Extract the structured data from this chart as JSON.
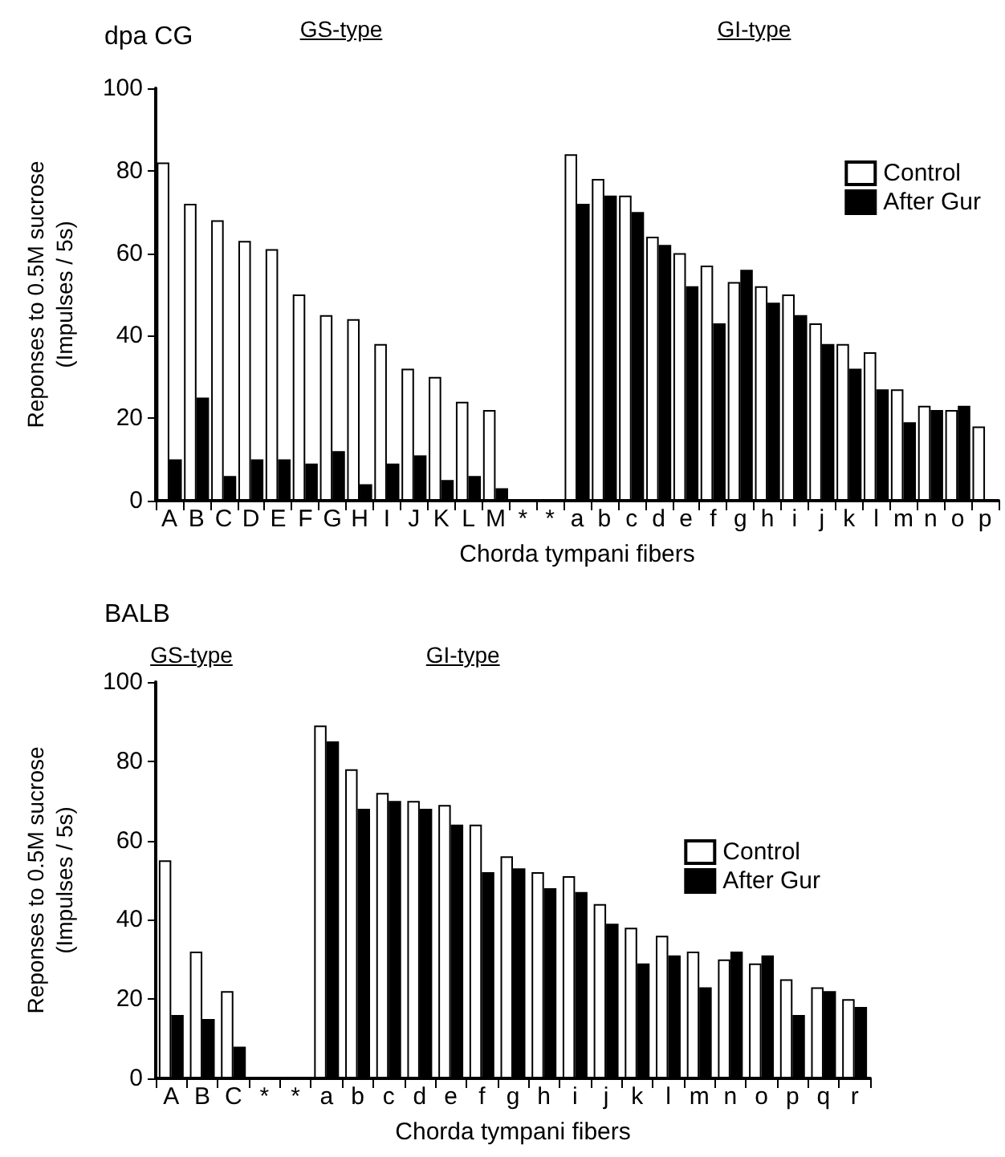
{
  "chart_data": [
    {
      "type": "bar",
      "title": "dpa CG",
      "xlabel": "Chorda tympani fibers",
      "ylabel": "Reponses to 0.5M sucrose\n(Impulses / 5s)",
      "annotations": [
        "GS-type",
        "GI-type"
      ],
      "categories": [
        "A",
        "B",
        "C",
        "D",
        "E",
        "F",
        "G",
        "H",
        "I",
        "J",
        "K",
        "L",
        "M",
        "*",
        "*",
        "a",
        "b",
        "c",
        "d",
        "e",
        "f",
        "g",
        "h",
        "i",
        "j",
        "k",
        "l",
        "m",
        "n",
        "o",
        "p"
      ],
      "series": [
        {
          "name": "Control",
          "color": "#ffffff",
          "values": [
            82,
            72,
            68,
            63,
            61,
            50,
            45,
            44,
            38,
            32,
            30,
            24,
            22,
            null,
            null,
            84,
            78,
            74,
            64,
            60,
            57,
            53,
            52,
            50,
            43,
            38,
            36,
            27,
            23,
            22,
            18
          ]
        },
        {
          "name": "After Gur",
          "color": "#000000",
          "values": [
            10,
            25,
            6,
            10,
            10,
            9,
            12,
            4,
            9,
            11,
            5,
            6,
            3,
            null,
            null,
            72,
            74,
            70,
            62,
            52,
            43,
            56,
            48,
            45,
            38,
            32,
            27,
            19,
            22,
            23,
            null
          ]
        }
      ],
      "ylim": [
        0,
        100
      ],
      "yticks": [
        0,
        20,
        40,
        60,
        80,
        100
      ],
      "grid": false,
      "legend": "top right"
    },
    {
      "type": "bar",
      "title": "BALB",
      "xlabel": "Chorda tympani fibers",
      "ylabel": "Reponses to 0.5M sucrose\n(Impulses / 5s)",
      "annotations": [
        "GS-type",
        "GI-type"
      ],
      "categories": [
        "A",
        "B",
        "C",
        "*",
        "*",
        "a",
        "b",
        "c",
        "d",
        "e",
        "f",
        "g",
        "h",
        "i",
        "j",
        "k",
        "l",
        "m",
        "n",
        "o",
        "p",
        "q",
        "r"
      ],
      "series": [
        {
          "name": "Control",
          "color": "#ffffff",
          "values": [
            55,
            32,
            22,
            null,
            null,
            89,
            78,
            72,
            70,
            69,
            64,
            56,
            52,
            51,
            44,
            38,
            36,
            32,
            30,
            29,
            25,
            23,
            20
          ]
        },
        {
          "name": "After Gur",
          "color": "#000000",
          "values": [
            16,
            15,
            8,
            null,
            null,
            85,
            68,
            70,
            68,
            64,
            52,
            53,
            48,
            47,
            39,
            29,
            31,
            23,
            32,
            31,
            16,
            22,
            18
          ]
        }
      ],
      "ylim": [
        0,
        100
      ],
      "yticks": [
        0,
        20,
        40,
        60,
        80,
        100
      ],
      "grid": false,
      "legend": "right"
    }
  ]
}
